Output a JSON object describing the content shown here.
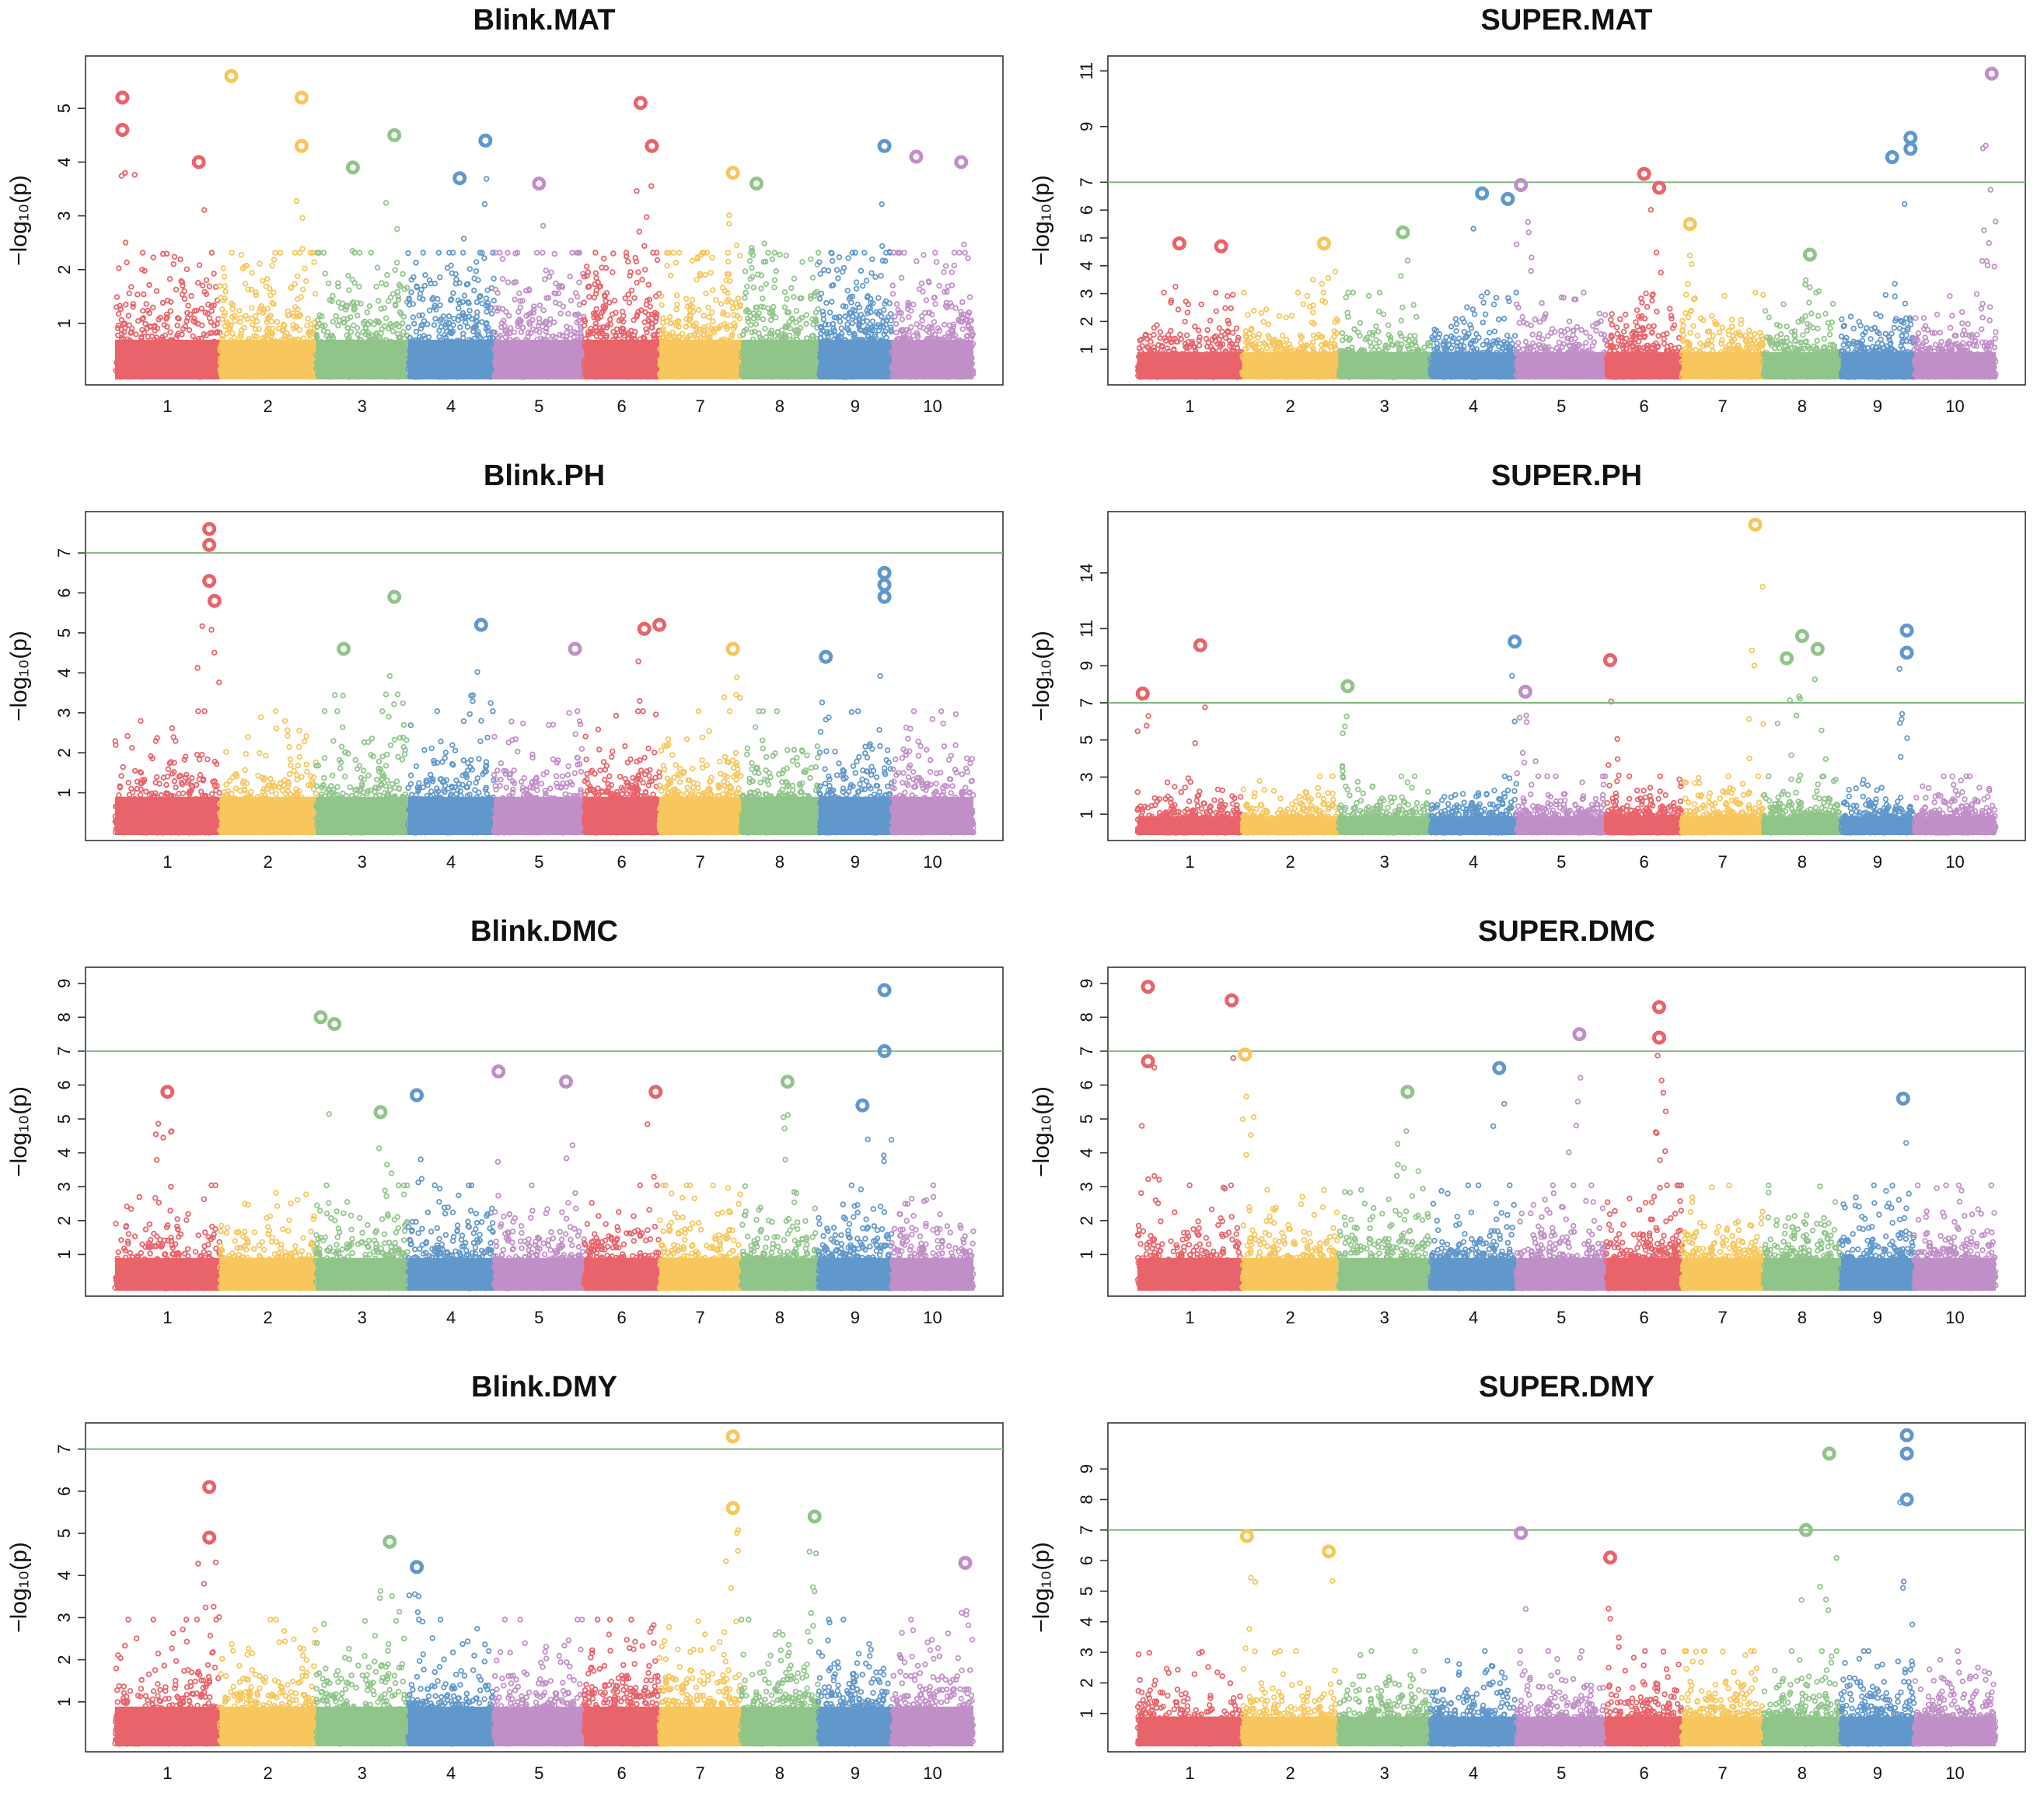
{
  "palette": [
    "#e9636a",
    "#f7c65c",
    "#90c58a",
    "#6198cc",
    "#c18fc8"
  ],
  "threshold_color": "#7fb87a",
  "chromosomes": [
    "1",
    "2",
    "3",
    "4",
    "5",
    "6",
    "7",
    "8",
    "9",
    "10"
  ],
  "chr_sizes": [
    1.0,
    0.92,
    0.88,
    0.82,
    0.86,
    0.72,
    0.78,
    0.74,
    0.7,
    0.78
  ],
  "chart_data": [
    {
      "type": "scatter",
      "title": "Blink.MAT",
      "ylabel": "−log₁₀(p)",
      "yticks": [
        1,
        2,
        3,
        4,
        5
      ],
      "ylim": [
        0,
        5.8
      ],
      "threshold": null,
      "xticks": [
        "1",
        "2",
        "3",
        "4",
        "5",
        "6",
        "7",
        "8",
        "9",
        "10"
      ],
      "peaks": [
        {
          "chr": 1,
          "pos": 0.07,
          "y": 5.2
        },
        {
          "chr": 1,
          "pos": 0.07,
          "y": 4.6
        },
        {
          "chr": 1,
          "pos": 0.8,
          "y": 4.0
        },
        {
          "chr": 2,
          "pos": 0.12,
          "y": 5.6
        },
        {
          "chr": 2,
          "pos": 0.85,
          "y": 5.2
        },
        {
          "chr": 2,
          "pos": 0.85,
          "y": 4.3
        },
        {
          "chr": 3,
          "pos": 0.4,
          "y": 3.9
        },
        {
          "chr": 3,
          "pos": 0.85,
          "y": 4.5
        },
        {
          "chr": 4,
          "pos": 0.9,
          "y": 4.4
        },
        {
          "chr": 4,
          "pos": 0.6,
          "y": 3.7
        },
        {
          "chr": 5,
          "pos": 0.5,
          "y": 3.6
        },
        {
          "chr": 6,
          "pos": 0.75,
          "y": 5.1
        },
        {
          "chr": 6,
          "pos": 0.9,
          "y": 4.3
        },
        {
          "chr": 7,
          "pos": 0.9,
          "y": 3.8
        },
        {
          "chr": 8,
          "pos": 0.2,
          "y": 3.6
        },
        {
          "chr": 9,
          "pos": 0.9,
          "y": 4.3
        },
        {
          "chr": 10,
          "pos": 0.3,
          "y": 4.1
        },
        {
          "chr": 10,
          "pos": 0.85,
          "y": 4.0
        }
      ]
    },
    {
      "type": "scatter",
      "title": "SUPER.MAT",
      "ylabel": "−log₁₀(p)",
      "yticks": [
        1,
        2,
        3,
        4,
        5,
        6,
        7,
        9,
        11
      ],
      "ylim": [
        0,
        11.2
      ],
      "threshold": 7,
      "xticks": [
        "1",
        "2",
        "3",
        "4",
        "5",
        "6",
        "7",
        "8",
        "9",
        "10"
      ],
      "peaks": [
        {
          "chr": 1,
          "pos": 0.4,
          "y": 4.8
        },
        {
          "chr": 1,
          "pos": 0.8,
          "y": 4.7
        },
        {
          "chr": 2,
          "pos": 0.85,
          "y": 4.8
        },
        {
          "chr": 3,
          "pos": 0.7,
          "y": 5.2
        },
        {
          "chr": 4,
          "pos": 0.6,
          "y": 6.6
        },
        {
          "chr": 4,
          "pos": 0.9,
          "y": 6.4
        },
        {
          "chr": 5,
          "pos": 0.05,
          "y": 6.9
        },
        {
          "chr": 6,
          "pos": 0.5,
          "y": 7.3
        },
        {
          "chr": 6,
          "pos": 0.7,
          "y": 6.8
        },
        {
          "chr": 7,
          "pos": 0.1,
          "y": 5.5
        },
        {
          "chr": 8,
          "pos": 0.6,
          "y": 4.4
        },
        {
          "chr": 9,
          "pos": 0.7,
          "y": 7.9
        },
        {
          "chr": 9,
          "pos": 0.95,
          "y": 8.6
        },
        {
          "chr": 9,
          "pos": 0.95,
          "y": 8.2
        },
        {
          "chr": 10,
          "pos": 0.95,
          "y": 10.9
        }
      ]
    },
    {
      "type": "scatter",
      "title": "Blink.PH",
      "ylabel": "−log₁₀(p)",
      "yticks": [
        1,
        2,
        3,
        4,
        5,
        6,
        7
      ],
      "ylim": [
        0,
        7.8
      ],
      "threshold": 7,
      "xticks": [
        "1",
        "2",
        "3",
        "4",
        "5",
        "6",
        "7",
        "8",
        "9",
        "10"
      ],
      "peaks": [
        {
          "chr": 1,
          "pos": 0.9,
          "y": 7.6
        },
        {
          "chr": 1,
          "pos": 0.9,
          "y": 7.2
        },
        {
          "chr": 1,
          "pos": 0.9,
          "y": 6.3
        },
        {
          "chr": 1,
          "pos": 0.95,
          "y": 5.8
        },
        {
          "chr": 3,
          "pos": 0.85,
          "y": 5.9
        },
        {
          "chr": 3,
          "pos": 0.3,
          "y": 4.6
        },
        {
          "chr": 4,
          "pos": 0.85,
          "y": 5.2
        },
        {
          "chr": 5,
          "pos": 0.9,
          "y": 4.6
        },
        {
          "chr": 6,
          "pos": 0.8,
          "y": 5.1
        },
        {
          "chr": 6,
          "pos": 1.0,
          "y": 5.2
        },
        {
          "chr": 7,
          "pos": 0.9,
          "y": 4.6
        },
        {
          "chr": 9,
          "pos": 0.9,
          "y": 6.5
        },
        {
          "chr": 9,
          "pos": 0.9,
          "y": 6.2
        },
        {
          "chr": 9,
          "pos": 0.9,
          "y": 5.9
        },
        {
          "chr": 9,
          "pos": 0.1,
          "y": 4.4
        }
      ]
    },
    {
      "type": "scatter",
      "title": "SUPER.PH",
      "ylabel": "−log₁₀(p)",
      "yticks": [
        1,
        3,
        5,
        7,
        9,
        11,
        14
      ],
      "ylim": [
        0,
        16.8
      ],
      "threshold": 7,
      "xticks": [
        "1",
        "2",
        "3",
        "4",
        "5",
        "6",
        "7",
        "8",
        "9",
        "10"
      ],
      "peaks": [
        {
          "chr": 1,
          "pos": 0.05,
          "y": 7.5
        },
        {
          "chr": 1,
          "pos": 0.6,
          "y": 10.1
        },
        {
          "chr": 3,
          "pos": 0.1,
          "y": 7.9
        },
        {
          "chr": 4,
          "pos": 0.98,
          "y": 10.3
        },
        {
          "chr": 5,
          "pos": 0.1,
          "y": 7.6
        },
        {
          "chr": 6,
          "pos": 0.05,
          "y": 9.3
        },
        {
          "chr": 7,
          "pos": 0.9,
          "y": 16.6
        },
        {
          "chr": 8,
          "pos": 0.3,
          "y": 9.4
        },
        {
          "chr": 8,
          "pos": 0.5,
          "y": 10.6
        },
        {
          "chr": 8,
          "pos": 0.7,
          "y": 9.9
        },
        {
          "chr": 9,
          "pos": 0.9,
          "y": 10.9
        },
        {
          "chr": 9,
          "pos": 0.9,
          "y": 9.7
        }
      ]
    },
    {
      "type": "scatter",
      "title": "Blink.DMC",
      "ylabel": "−log₁₀(p)",
      "yticks": [
        1,
        2,
        3,
        4,
        5,
        6,
        7,
        8,
        9
      ],
      "ylim": [
        0,
        9.2
      ],
      "threshold": 7,
      "xticks": [
        "1",
        "2",
        "3",
        "4",
        "5",
        "6",
        "7",
        "8",
        "9",
        "10"
      ],
      "peaks": [
        {
          "chr": 1,
          "pos": 0.5,
          "y": 5.8
        },
        {
          "chr": 3,
          "pos": 0.05,
          "y": 8.0
        },
        {
          "chr": 3,
          "pos": 0.2,
          "y": 7.8
        },
        {
          "chr": 3,
          "pos": 0.7,
          "y": 5.2
        },
        {
          "chr": 4,
          "pos": 0.1,
          "y": 5.7
        },
        {
          "chr": 5,
          "pos": 0.05,
          "y": 6.4
        },
        {
          "chr": 5,
          "pos": 0.8,
          "y": 6.1
        },
        {
          "chr": 6,
          "pos": 0.95,
          "y": 5.8
        },
        {
          "chr": 8,
          "pos": 0.6,
          "y": 6.1
        },
        {
          "chr": 9,
          "pos": 0.9,
          "y": 8.8
        },
        {
          "chr": 9,
          "pos": 0.9,
          "y": 7.0
        },
        {
          "chr": 9,
          "pos": 0.6,
          "y": 5.4
        }
      ]
    },
    {
      "type": "scatter",
      "title": "SUPER.DMC",
      "ylabel": "−log₁₀(p)",
      "yticks": [
        1,
        2,
        3,
        4,
        5,
        6,
        7,
        8,
        9
      ],
      "ylim": [
        0,
        9.2
      ],
      "threshold": 7,
      "xticks": [
        "1",
        "2",
        "3",
        "4",
        "5",
        "6",
        "7",
        "8",
        "9",
        "10"
      ],
      "peaks": [
        {
          "chr": 1,
          "pos": 0.1,
          "y": 8.9
        },
        {
          "chr": 1,
          "pos": 0.9,
          "y": 8.5
        },
        {
          "chr": 1,
          "pos": 0.1,
          "y": 6.7
        },
        {
          "chr": 2,
          "pos": 0.03,
          "y": 6.9
        },
        {
          "chr": 4,
          "pos": 0.8,
          "y": 6.5
        },
        {
          "chr": 5,
          "pos": 0.7,
          "y": 7.5
        },
        {
          "chr": 6,
          "pos": 0.7,
          "y": 8.3
        },
        {
          "chr": 6,
          "pos": 0.7,
          "y": 7.4
        },
        {
          "chr": 3,
          "pos": 0.75,
          "y": 5.8
        },
        {
          "chr": 9,
          "pos": 0.85,
          "y": 5.6
        }
      ]
    },
    {
      "type": "scatter",
      "title": "Blink.DMY",
      "ylabel": "−log₁₀(p)",
      "yticks": [
        1,
        2,
        3,
        4,
        5,
        6,
        7
      ],
      "ylim": [
        0,
        7.4
      ],
      "threshold": 7,
      "xticks": [
        "1",
        "2",
        "3",
        "4",
        "5",
        "6",
        "7",
        "8",
        "9",
        "10"
      ],
      "peaks": [
        {
          "chr": 1,
          "pos": 0.9,
          "y": 6.1
        },
        {
          "chr": 1,
          "pos": 0.9,
          "y": 4.9
        },
        {
          "chr": 3,
          "pos": 0.8,
          "y": 4.8
        },
        {
          "chr": 4,
          "pos": 0.1,
          "y": 4.2
        },
        {
          "chr": 7,
          "pos": 0.9,
          "y": 7.3
        },
        {
          "chr": 7,
          "pos": 0.9,
          "y": 5.6
        },
        {
          "chr": 8,
          "pos": 0.95,
          "y": 5.4
        },
        {
          "chr": 10,
          "pos": 0.9,
          "y": 4.3
        }
      ]
    },
    {
      "type": "scatter",
      "title": "SUPER.DMY",
      "ylabel": "−log₁₀(p)",
      "yticks": [
        1,
        2,
        3,
        4,
        5,
        6,
        7,
        8,
        9
      ],
      "ylim": [
        0,
        10.2
      ],
      "threshold": 7,
      "xticks": [
        "1",
        "2",
        "3",
        "4",
        "5",
        "6",
        "7",
        "8",
        "9",
        "10"
      ],
      "peaks": [
        {
          "chr": 2,
          "pos": 0.05,
          "y": 6.8
        },
        {
          "chr": 2,
          "pos": 0.9,
          "y": 6.3
        },
        {
          "chr": 5,
          "pos": 0.05,
          "y": 6.9
        },
        {
          "chr": 6,
          "pos": 0.05,
          "y": 6.1
        },
        {
          "chr": 8,
          "pos": 0.55,
          "y": 7.0
        },
        {
          "chr": 8,
          "pos": 0.85,
          "y": 9.5
        },
        {
          "chr": 9,
          "pos": 0.9,
          "y": 10.1
        },
        {
          "chr": 9,
          "pos": 0.9,
          "y": 9.5
        },
        {
          "chr": 9,
          "pos": 0.9,
          "y": 8.0
        }
      ]
    }
  ]
}
